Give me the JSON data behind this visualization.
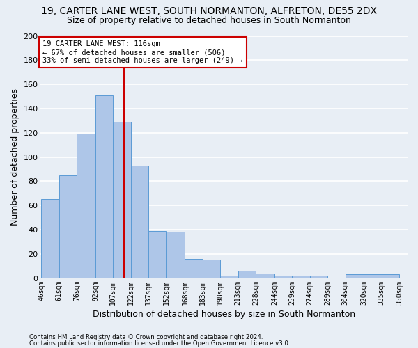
{
  "title1": "19, CARTER LANE WEST, SOUTH NORMANTON, ALFRETON, DE55 2DX",
  "title2": "Size of property relative to detached houses in South Normanton",
  "xlabel": "Distribution of detached houses by size in South Normanton",
  "ylabel": "Number of detached properties",
  "bar_values": [
    65,
    85,
    119,
    151,
    129,
    93,
    39,
    38,
    16,
    15,
    2,
    6,
    4,
    2,
    2,
    2,
    0,
    3
  ],
  "bin_edges": [
    46,
    61,
    76,
    92,
    107,
    122,
    137,
    152,
    168,
    183,
    198,
    213,
    228,
    244,
    259,
    274,
    289,
    304,
    350
  ],
  "tick_positions": [
    46,
    61,
    76,
    92,
    107,
    122,
    137,
    152,
    168,
    183,
    198,
    213,
    228,
    244,
    259,
    274,
    289,
    304,
    320,
    335,
    350
  ],
  "tick_labels": [
    "46sqm",
    "61sqm",
    "76sqm",
    "92sqm",
    "107sqm",
    "122sqm",
    "137sqm",
    "152sqm",
    "168sqm",
    "183sqm",
    "198sqm",
    "213sqm",
    "228sqm",
    "244sqm",
    "259sqm",
    "274sqm",
    "289sqm",
    "304sqm",
    "320sqm",
    "335sqm",
    "350sqm"
  ],
  "bar_color": "#aec6e8",
  "bar_edgecolor": "#5b9bd5",
  "property_line_x": 116,
  "annotation_line1": "19 CARTER LANE WEST: 116sqm",
  "annotation_line2": "← 67% of detached houses are smaller (506)",
  "annotation_line3": "33% of semi-detached houses are larger (249) →",
  "annotation_box_facecolor": "#ffffff",
  "annotation_box_edgecolor": "#cc0000",
  "vline_color": "#cc0000",
  "ylim": [
    0,
    200
  ],
  "yticks": [
    0,
    20,
    40,
    60,
    80,
    100,
    120,
    140,
    160,
    180,
    200
  ],
  "footer1": "Contains HM Land Registry data © Crown copyright and database right 2024.",
  "footer2": "Contains public sector information licensed under the Open Government Licence v3.0.",
  "bg_color": "#e8eef5",
  "grid_color": "#ffffff"
}
